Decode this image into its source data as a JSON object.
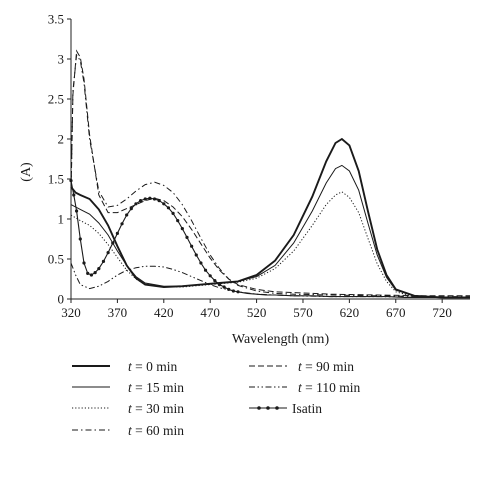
{
  "chart_data": {
    "type": "line",
    "title": "",
    "xlabel": "Wavelength (nm)",
    "ylabel": "(A)",
    "xlim": [
      320,
      750
    ],
    "ylim": [
      0,
      3.5
    ],
    "x_ticks": [
      "320",
      "370",
      "420",
      "470",
      "520",
      "570",
      "620",
      "670",
      "720"
    ],
    "y_ticks": [
      "0",
      "0.5",
      "1",
      "1.5",
      "2",
      "2.5",
      "3",
      "3.5"
    ],
    "grid": false,
    "legend_position": "bottom",
    "series": [
      {
        "name": "t = 0 min",
        "style": "solid-thick",
        "points": [
          [
            320,
            1.4
          ],
          [
            325,
            1.33
          ],
          [
            330,
            1.3
          ],
          [
            340,
            1.25
          ],
          [
            350,
            1.12
          ],
          [
            360,
            0.92
          ],
          [
            370,
            0.66
          ],
          [
            380,
            0.42
          ],
          [
            390,
            0.26
          ],
          [
            400,
            0.18
          ],
          [
            420,
            0.15
          ],
          [
            440,
            0.16
          ],
          [
            460,
            0.18
          ],
          [
            480,
            0.2
          ],
          [
            500,
            0.22
          ],
          [
            520,
            0.3
          ],
          [
            540,
            0.48
          ],
          [
            560,
            0.8
          ],
          [
            580,
            1.28
          ],
          [
            595,
            1.72
          ],
          [
            605,
            1.95
          ],
          [
            612,
            2.0
          ],
          [
            620,
            1.92
          ],
          [
            630,
            1.6
          ],
          [
            640,
            1.1
          ],
          [
            650,
            0.62
          ],
          [
            660,
            0.3
          ],
          [
            670,
            0.12
          ],
          [
            690,
            0.04
          ],
          [
            720,
            0.02
          ],
          [
            750,
            0.02
          ]
        ]
      },
      {
        "name": "t = 15 min",
        "style": "solid-thin",
        "points": [
          [
            320,
            1.18
          ],
          [
            330,
            1.12
          ],
          [
            340,
            1.06
          ],
          [
            350,
            0.95
          ],
          [
            360,
            0.8
          ],
          [
            370,
            0.6
          ],
          [
            380,
            0.42
          ],
          [
            390,
            0.28
          ],
          [
            400,
            0.2
          ],
          [
            420,
            0.16
          ],
          [
            440,
            0.16
          ],
          [
            460,
            0.18
          ],
          [
            480,
            0.2
          ],
          [
            500,
            0.22
          ],
          [
            520,
            0.28
          ],
          [
            540,
            0.42
          ],
          [
            560,
            0.7
          ],
          [
            580,
            1.1
          ],
          [
            595,
            1.45
          ],
          [
            605,
            1.63
          ],
          [
            612,
            1.67
          ],
          [
            620,
            1.6
          ],
          [
            630,
            1.36
          ],
          [
            640,
            0.95
          ],
          [
            650,
            0.55
          ],
          [
            660,
            0.27
          ],
          [
            670,
            0.11
          ],
          [
            690,
            0.04
          ],
          [
            720,
            0.02
          ],
          [
            750,
            0.02
          ]
        ]
      },
      {
        "name": "t = 30 min",
        "style": "dotted",
        "points": [
          [
            320,
            1.05
          ],
          [
            330,
            0.98
          ],
          [
            340,
            0.92
          ],
          [
            350,
            0.82
          ],
          [
            360,
            0.68
          ],
          [
            370,
            0.52
          ],
          [
            380,
            0.36
          ],
          [
            390,
            0.25
          ],
          [
            400,
            0.18
          ],
          [
            420,
            0.15
          ],
          [
            440,
            0.15
          ],
          [
            460,
            0.17
          ],
          [
            480,
            0.19
          ],
          [
            500,
            0.21
          ],
          [
            520,
            0.26
          ],
          [
            540,
            0.38
          ],
          [
            560,
            0.6
          ],
          [
            580,
            0.92
          ],
          [
            595,
            1.18
          ],
          [
            605,
            1.3
          ],
          [
            612,
            1.34
          ],
          [
            620,
            1.27
          ],
          [
            630,
            1.08
          ],
          [
            640,
            0.76
          ],
          [
            650,
            0.44
          ],
          [
            660,
            0.22
          ],
          [
            670,
            0.09
          ],
          [
            690,
            0.03
          ],
          [
            720,
            0.02
          ],
          [
            750,
            0.02
          ]
        ]
      },
      {
        "name": "t = 60 min",
        "style": "dash-dot",
        "points": [
          [
            320,
            1.3
          ],
          [
            322,
            2.6
          ],
          [
            326,
            3.05
          ],
          [
            330,
            2.98
          ],
          [
            334,
            2.7
          ],
          [
            340,
            2.0
          ],
          [
            350,
            1.35
          ],
          [
            360,
            1.15
          ],
          [
            370,
            1.17
          ],
          [
            380,
            1.25
          ],
          [
            390,
            1.35
          ],
          [
            400,
            1.43
          ],
          [
            410,
            1.46
          ],
          [
            420,
            1.42
          ],
          [
            430,
            1.33
          ],
          [
            440,
            1.18
          ],
          [
            450,
            0.98
          ],
          [
            460,
            0.76
          ],
          [
            470,
            0.55
          ],
          [
            480,
            0.38
          ],
          [
            490,
            0.25
          ],
          [
            500,
            0.17
          ],
          [
            520,
            0.1
          ],
          [
            540,
            0.07
          ],
          [
            560,
            0.06
          ],
          [
            600,
            0.05
          ],
          [
            650,
            0.04
          ],
          [
            700,
            0.03
          ],
          [
            750,
            0.03
          ]
        ]
      },
      {
        "name": "t = 90 min",
        "style": "dashed",
        "points": [
          [
            320,
            1.3
          ],
          [
            322,
            2.55
          ],
          [
            326,
            3.1
          ],
          [
            330,
            3.02
          ],
          [
            334,
            2.75
          ],
          [
            340,
            2.05
          ],
          [
            350,
            1.3
          ],
          [
            360,
            1.08
          ],
          [
            370,
            1.08
          ],
          [
            380,
            1.13
          ],
          [
            390,
            1.18
          ],
          [
            400,
            1.23
          ],
          [
            410,
            1.26
          ],
          [
            420,
            1.23
          ],
          [
            430,
            1.15
          ],
          [
            440,
            1.03
          ],
          [
            450,
            0.87
          ],
          [
            460,
            0.69
          ],
          [
            470,
            0.51
          ],
          [
            480,
            0.36
          ],
          [
            490,
            0.25
          ],
          [
            500,
            0.18
          ],
          [
            520,
            0.12
          ],
          [
            540,
            0.09
          ],
          [
            560,
            0.08
          ],
          [
            600,
            0.06
          ],
          [
            650,
            0.05
          ],
          [
            700,
            0.04
          ],
          [
            750,
            0.04
          ]
        ]
      },
      {
        "name": "t = 110 min",
        "style": "dash-dot-dot",
        "points": [
          [
            320,
            0.45
          ],
          [
            325,
            0.3
          ],
          [
            330,
            0.18
          ],
          [
            340,
            0.13
          ],
          [
            350,
            0.16
          ],
          [
            360,
            0.22
          ],
          [
            370,
            0.3
          ],
          [
            380,
            0.36
          ],
          [
            390,
            0.39
          ],
          [
            400,
            0.41
          ],
          [
            410,
            0.41
          ],
          [
            420,
            0.4
          ],
          [
            430,
            0.37
          ],
          [
            440,
            0.33
          ],
          [
            450,
            0.28
          ],
          [
            460,
            0.23
          ],
          [
            470,
            0.18
          ],
          [
            480,
            0.14
          ],
          [
            500,
            0.09
          ],
          [
            520,
            0.06
          ],
          [
            560,
            0.04
          ],
          [
            600,
            0.03
          ],
          [
            650,
            0.03
          ],
          [
            700,
            0.02
          ],
          [
            750,
            0.02
          ]
        ]
      },
      {
        "name": "Isatin",
        "style": "solid-marker",
        "points": [
          [
            320,
            1.48
          ],
          [
            323,
            1.3
          ],
          [
            326,
            1.1
          ],
          [
            330,
            0.75
          ],
          [
            334,
            0.45
          ],
          [
            338,
            0.32
          ],
          [
            342,
            0.3
          ],
          [
            346,
            0.33
          ],
          [
            350,
            0.38
          ],
          [
            355,
            0.47
          ],
          [
            360,
            0.58
          ],
          [
            365,
            0.7
          ],
          [
            370,
            0.82
          ],
          [
            375,
            0.94
          ],
          [
            380,
            1.05
          ],
          [
            385,
            1.13
          ],
          [
            390,
            1.19
          ],
          [
            395,
            1.23
          ],
          [
            400,
            1.25
          ],
          [
            405,
            1.26
          ],
          [
            410,
            1.25
          ],
          [
            415,
            1.23
          ],
          [
            420,
            1.19
          ],
          [
            425,
            1.14
          ],
          [
            430,
            1.07
          ],
          [
            435,
            0.98
          ],
          [
            440,
            0.88
          ],
          [
            445,
            0.77
          ],
          [
            450,
            0.66
          ],
          [
            455,
            0.55
          ],
          [
            460,
            0.45
          ],
          [
            465,
            0.36
          ],
          [
            470,
            0.29
          ],
          [
            475,
            0.23
          ],
          [
            480,
            0.18
          ],
          [
            485,
            0.15
          ],
          [
            490,
            0.12
          ],
          [
            495,
            0.1
          ],
          [
            500,
            0.09
          ],
          [
            510,
            0.07
          ],
          [
            520,
            0.06
          ],
          [
            530,
            0.05
          ],
          [
            540,
            0.05
          ],
          [
            560,
            0.04
          ],
          [
            580,
            0.04
          ],
          [
            600,
            0.03
          ],
          [
            620,
            0.03
          ],
          [
            640,
            0.03
          ],
          [
            660,
            0.03
          ],
          [
            680,
            0.02
          ],
          [
            700,
            0.02
          ],
          [
            720,
            0.02
          ],
          [
            750,
            0.02
          ]
        ]
      }
    ]
  },
  "legend": {
    "items": [
      {
        "prefix": "t",
        "text": " = 0 min"
      },
      {
        "prefix": "t",
        "text": " = 90 min"
      },
      {
        "prefix": "t",
        "text": " = 15 min"
      },
      {
        "prefix": "t",
        "text": " = 110 min"
      },
      {
        "prefix": "t",
        "text": " = 30 min"
      },
      {
        "prefix": "",
        "text": "Isatin"
      },
      {
        "prefix": "t",
        "text": " = 60 min"
      }
    ]
  }
}
